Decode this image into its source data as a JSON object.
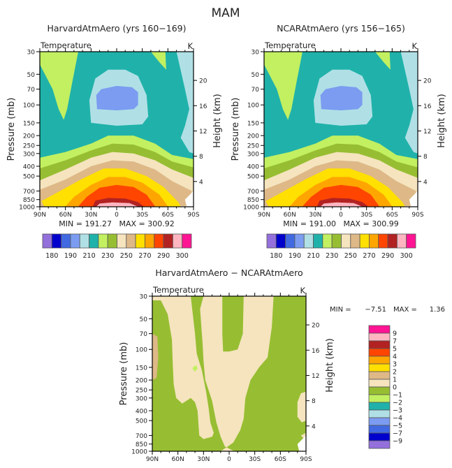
{
  "page_title": "MAM",
  "chart_data": [
    {
      "type": "heatmap",
      "subtype": "filled-contour",
      "title": "HarvardAtmAero (yrs 160−169)",
      "left_string": "Temperature",
      "right_string": "K",
      "xlabel": "",
      "ylabel": "Pressure (mb)",
      "ylabel_right": "Height (km)",
      "x_ticks": [
        "90N",
        "60N",
        "30N",
        "0",
        "30S",
        "60S",
        "90S"
      ],
      "x_tick_values": [
        90,
        60,
        30,
        0,
        -30,
        -60,
        -90
      ],
      "y_ticks": [
        30,
        50,
        70,
        100,
        150,
        200,
        250,
        300,
        400,
        500,
        700,
        850,
        1000
      ],
      "y_right_ticks": [
        20,
        16,
        12,
        8,
        4
      ],
      "ylim": [
        1000,
        30
      ],
      "xlim": [
        90,
        -90
      ],
      "stats": "MIN = 191.27   MAX = 300.92",
      "colorbar": {
        "levels": [
          180,
          190,
          210,
          230,
          250,
          270,
          290,
          300
        ],
        "colors": [
          "#9370db",
          "#0000cd",
          "#4169e1",
          "#7b9cf0",
          "#b0e0e6",
          "#20b2aa",
          "#c2f061",
          "#97be32",
          "#f5e4be",
          "#deb887",
          "#ffe000",
          "#ffa500",
          "#ff4500",
          "#b22222",
          "#ffb6c1",
          "#ff1493"
        ]
      }
    },
    {
      "type": "heatmap",
      "subtype": "filled-contour",
      "title": "NCARAtmAero (yrs 156−165)",
      "left_string": "Temperature",
      "right_string": "K",
      "xlabel": "",
      "ylabel": "Pressure (mb)",
      "ylabel_right": "Height (km)",
      "x_ticks": [
        "90N",
        "60N",
        "30N",
        "0",
        "30S",
        "60S",
        "90S"
      ],
      "x_tick_values": [
        90,
        60,
        30,
        0,
        -30,
        -60,
        -90
      ],
      "y_ticks": [
        30,
        50,
        70,
        100,
        150,
        200,
        250,
        300,
        400,
        500,
        700,
        850,
        1000
      ],
      "y_right_ticks": [
        20,
        16,
        12,
        8,
        4
      ],
      "ylim": [
        1000,
        30
      ],
      "xlim": [
        90,
        -90
      ],
      "stats": "MIN = 191.00   MAX = 300.99",
      "colorbar": {
        "levels": [
          180,
          190,
          210,
          230,
          250,
          270,
          290,
          300
        ],
        "colors": [
          "#9370db",
          "#0000cd",
          "#4169e1",
          "#7b9cf0",
          "#b0e0e6",
          "#20b2aa",
          "#c2f061",
          "#97be32",
          "#f5e4be",
          "#deb887",
          "#ffe000",
          "#ffa500",
          "#ff4500",
          "#b22222",
          "#ffb6c1",
          "#ff1493"
        ]
      }
    },
    {
      "type": "heatmap",
      "subtype": "filled-contour",
      "title": "HarvardAtmAero − NCARAtmAero",
      "left_string": "Temperature",
      "right_string": "K",
      "xlabel": "",
      "ylabel": "Pressure (mb)",
      "ylabel_right": "Height (km)",
      "x_ticks": [
        "90N",
        "60N",
        "30N",
        "0",
        "30S",
        "60S",
        "90S"
      ],
      "x_tick_values": [
        90,
        60,
        30,
        0,
        -30,
        -60,
        -90
      ],
      "y_ticks": [
        30,
        50,
        70,
        100,
        150,
        200,
        250,
        300,
        400,
        500,
        700,
        850,
        1000
      ],
      "y_right_ticks": [
        20,
        16,
        12,
        8,
        4
      ],
      "ylim": [
        1000,
        30
      ],
      "xlim": [
        90,
        -90
      ],
      "stats_min_label": "MIN =",
      "stats_min": "−7.51",
      "stats_max_label": "MAX =",
      "stats_max": "1.36",
      "colorbar": {
        "orientation": "vertical",
        "levels": [
          "9",
          "7",
          "5",
          "4",
          "3",
          "2",
          "1",
          "0",
          "−1",
          "−2",
          "−3",
          "−4",
          "−5",
          "−7",
          "−9"
        ],
        "colors": [
          "#ff1493",
          "#ffb6c1",
          "#b22222",
          "#ff4500",
          "#ffa500",
          "#ffe000",
          "#deb887",
          "#f5e4be",
          "#97be32",
          "#c2f061",
          "#20b2aa",
          "#b0e0e6",
          "#7b9cf0",
          "#4169e1",
          "#0000cd",
          "#9370db"
        ]
      }
    }
  ]
}
